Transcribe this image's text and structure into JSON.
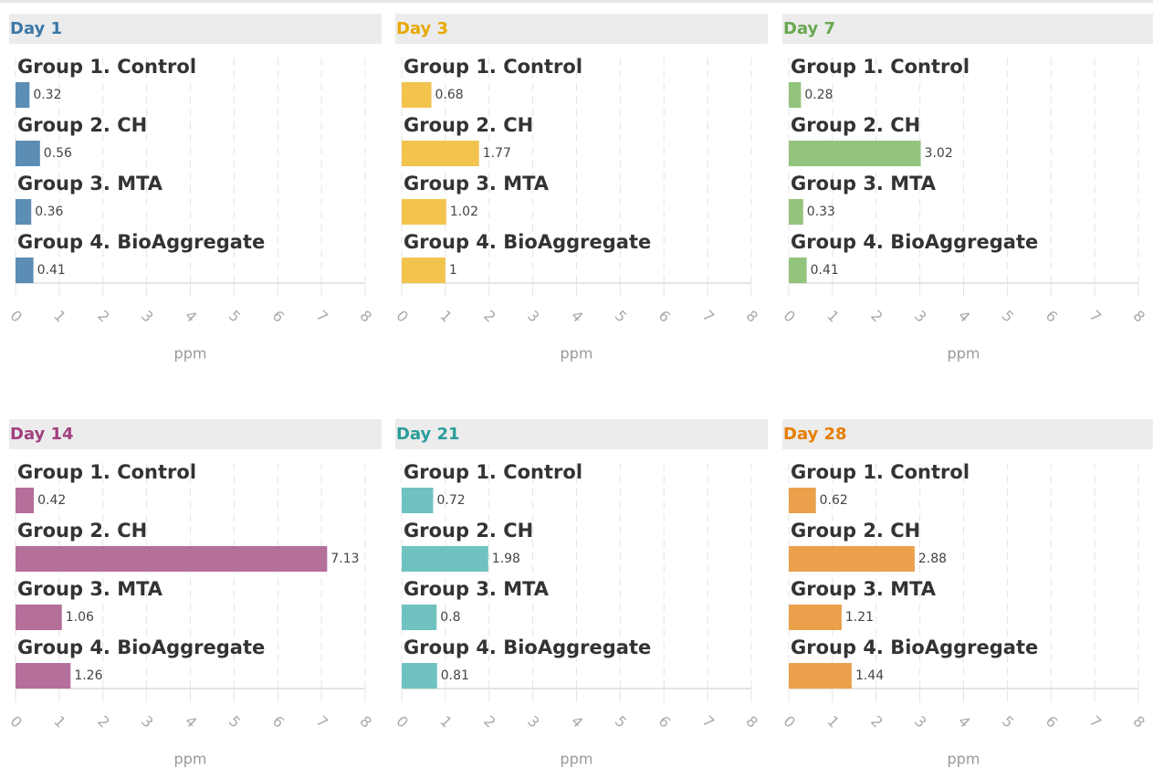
{
  "chart_data": [
    {
      "type": "bar",
      "title": "Day 1",
      "title_color": "#3a78a8",
      "color": "#5b8db5",
      "categories": [
        "Group 1. Control",
        "Group 2. CH",
        "Group 3. MTA",
        "Group 4. BioAggregate"
      ],
      "values": [
        0.32,
        0.56,
        0.36,
        0.41
      ],
      "xlim": [
        0,
        8
      ],
      "xticks": [
        0,
        1,
        2,
        3,
        4,
        5,
        6,
        7,
        8
      ],
      "xlabel": "ppm",
      "grid": true
    },
    {
      "type": "bar",
      "title": "Day 3",
      "title_color": "#e8a800",
      "color": "#f2c44e",
      "categories": [
        "Group 1. Control",
        "Group 2. CH",
        "Group 3. MTA",
        "Group 4. BioAggregate"
      ],
      "values": [
        0.68,
        1.77,
        1.02,
        1
      ],
      "xlim": [
        0,
        8
      ],
      "xticks": [
        0,
        1,
        2,
        3,
        4,
        5,
        6,
        7,
        8
      ],
      "xlabel": "ppm",
      "grid": true
    },
    {
      "type": "bar",
      "title": "Day 7",
      "title_color": "#6aa84f",
      "color": "#93c47d",
      "categories": [
        "Group 1. Control",
        "Group 2. CH",
        "Group 3. MTA",
        "Group 4. BioAggregate"
      ],
      "values": [
        0.28,
        3.02,
        0.33,
        0.41
      ],
      "xlim": [
        0,
        8
      ],
      "xticks": [
        0,
        1,
        2,
        3,
        4,
        5,
        6,
        7,
        8
      ],
      "xlabel": "ppm",
      "grid": true
    },
    {
      "type": "bar",
      "title": "Day 14",
      "title_color": "#a23f7e",
      "color": "#b56f9b",
      "categories": [
        "Group 1. Control",
        "Group 2. CH",
        "Group 3. MTA",
        "Group 4. BioAggregate"
      ],
      "values": [
        0.42,
        7.13,
        1.06,
        1.26
      ],
      "xlim": [
        0,
        8
      ],
      "xticks": [
        0,
        1,
        2,
        3,
        4,
        5,
        6,
        7,
        8
      ],
      "xlabel": "ppm",
      "grid": true
    },
    {
      "type": "bar",
      "title": "Day 21",
      "title_color": "#2a9d9a",
      "color": "#6fc2bf",
      "categories": [
        "Group 1. Control",
        "Group 2. CH",
        "Group 3. MTA",
        "Group 4. BioAggregate"
      ],
      "values": [
        0.72,
        1.98,
        0.8,
        0.81
      ],
      "xlim": [
        0,
        8
      ],
      "xticks": [
        0,
        1,
        2,
        3,
        4,
        5,
        6,
        7,
        8
      ],
      "xlabel": "ppm",
      "grid": true
    },
    {
      "type": "bar",
      "title": "Day 28",
      "title_color": "#e67e00",
      "color": "#eba04c",
      "categories": [
        "Group 1. Control",
        "Group 2. CH",
        "Group 3. MTA",
        "Group 4. BioAggregate"
      ],
      "values": [
        0.62,
        2.88,
        1.21,
        1.44
      ],
      "xlim": [
        0,
        8
      ],
      "xticks": [
        0,
        1,
        2,
        3,
        4,
        5,
        6,
        7,
        8
      ],
      "xlabel": "ppm",
      "grid": true
    }
  ]
}
